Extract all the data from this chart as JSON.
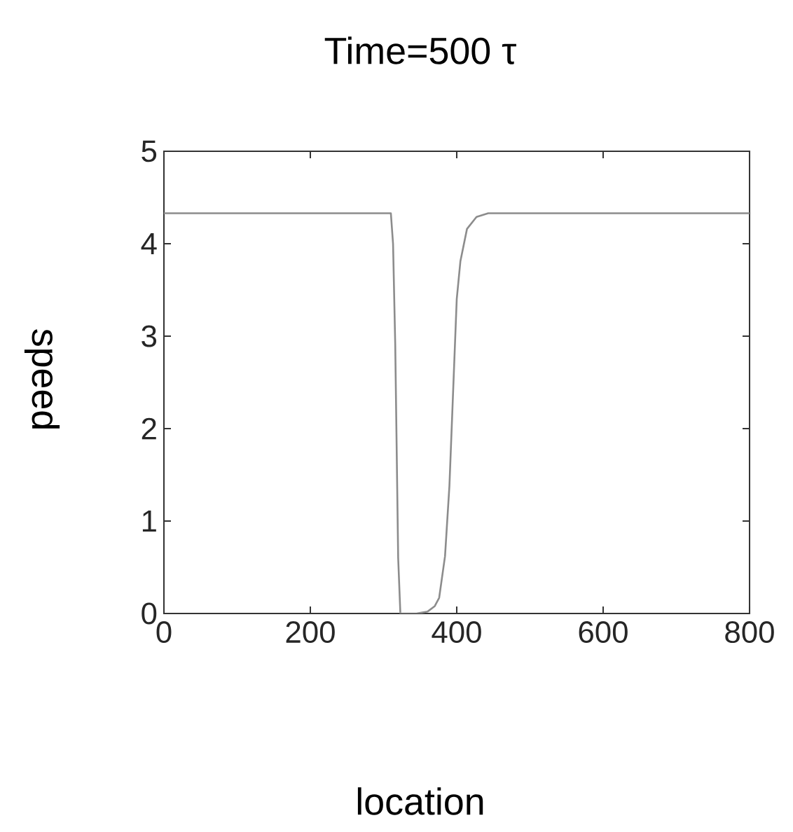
{
  "chart_data": {
    "type": "line",
    "title": "Time=500 τ",
    "xlabel": "location",
    "ylabel": "speed",
    "x": [
      0,
      100,
      200,
      300,
      310,
      313,
      316,
      320,
      323,
      330,
      345,
      360,
      370,
      376,
      384,
      390,
      395,
      400,
      405,
      414,
      427,
      443,
      500,
      600,
      700,
      800
    ],
    "series": [
      {
        "color": "#8c8c8c",
        "values": [
          4.33,
          4.33,
          4.33,
          4.33,
          4.33,
          4.0,
          2.9,
          0.6,
          0.0,
          0.0,
          0.0,
          0.02,
          0.08,
          0.17,
          0.62,
          1.38,
          2.39,
          3.4,
          3.81,
          4.16,
          4.29,
          4.33,
          4.33,
          4.33,
          4.33,
          4.33
        ]
      }
    ],
    "xlim": [
      0,
      800
    ],
    "ylim": [
      0,
      5
    ],
    "xticks": [
      0,
      200,
      400,
      600,
      800
    ],
    "yticks": [
      0,
      1,
      2,
      3,
      4,
      5
    ],
    "grid": false,
    "marker": "none",
    "line_style": "solid"
  }
}
